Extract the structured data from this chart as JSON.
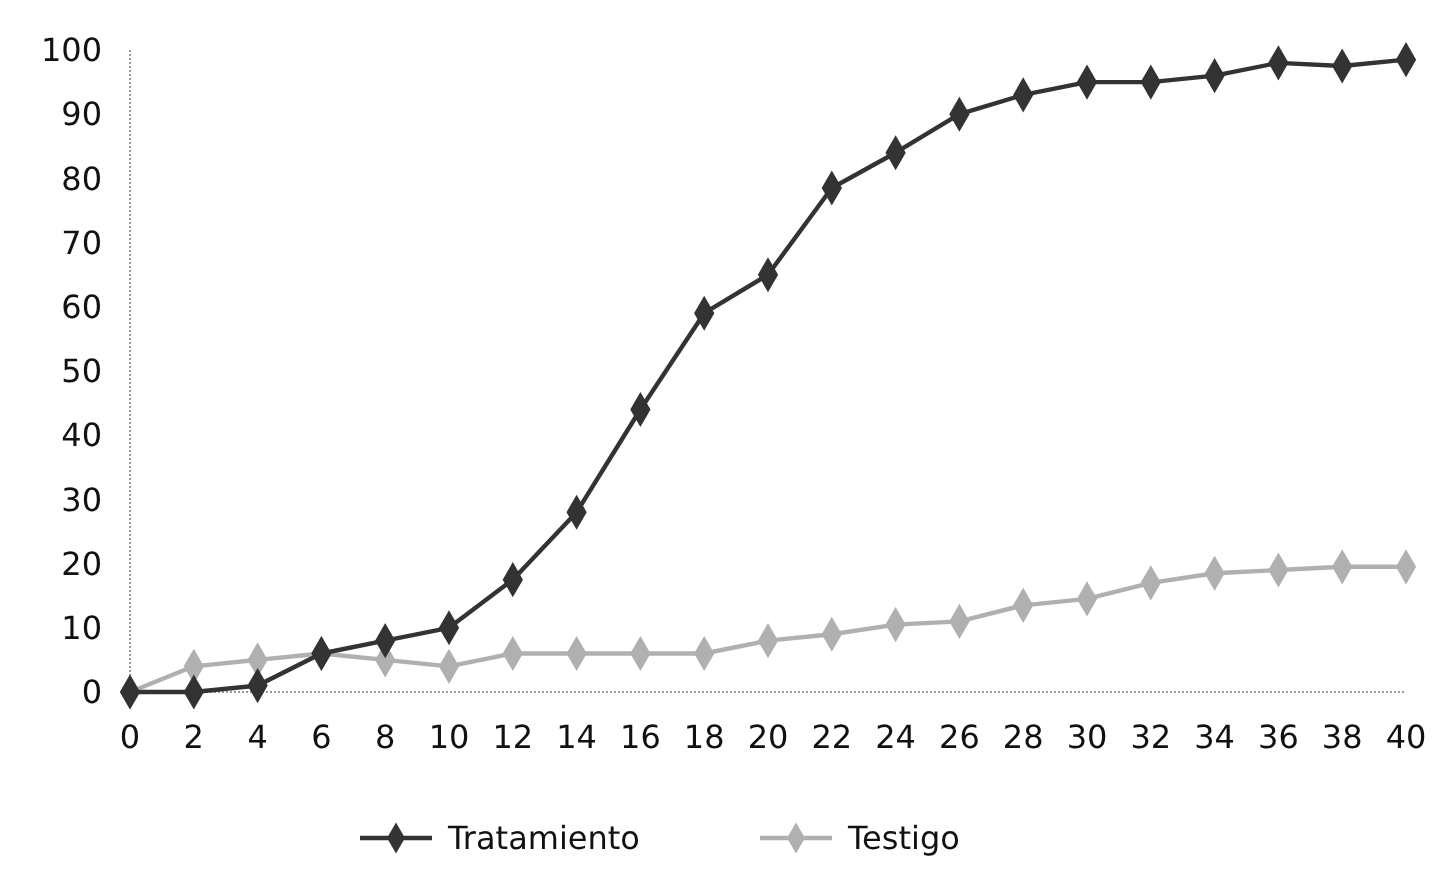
{
  "chart_data": {
    "type": "line",
    "x": [
      0,
      2,
      4,
      6,
      8,
      10,
      12,
      14,
      16,
      18,
      20,
      22,
      24,
      26,
      28,
      30,
      32,
      34,
      36,
      38,
      40
    ],
    "series": [
      {
        "name": "Tratamiento",
        "color": "#333333",
        "values": [
          0,
          0,
          1,
          6,
          8,
          10,
          17.5,
          28,
          44,
          59,
          65,
          78.5,
          84,
          90,
          93,
          95,
          95,
          96,
          98,
          97.5,
          98.5
        ]
      },
      {
        "name": "Testigo",
        "color": "#b0b0b0",
        "values": [
          0,
          4,
          5,
          6,
          5,
          4,
          6,
          6,
          6,
          6,
          8,
          9,
          10.5,
          11,
          13.5,
          14.5,
          17,
          18.5,
          19,
          19.5,
          19.5
        ]
      }
    ],
    "xlim": [
      0,
      40
    ],
    "xticks": [
      0,
      2,
      4,
      6,
      8,
      10,
      12,
      14,
      16,
      18,
      20,
      22,
      24,
      26,
      28,
      30,
      32,
      34,
      36,
      38,
      40
    ],
    "ylim": [
      0,
      100
    ],
    "yticks": [
      0,
      10,
      20,
      30,
      40,
      50,
      60,
      70,
      80,
      90,
      100
    ],
    "grid": false,
    "legend": "bottom",
    "marker": "diamond",
    "line_style": "solid"
  }
}
